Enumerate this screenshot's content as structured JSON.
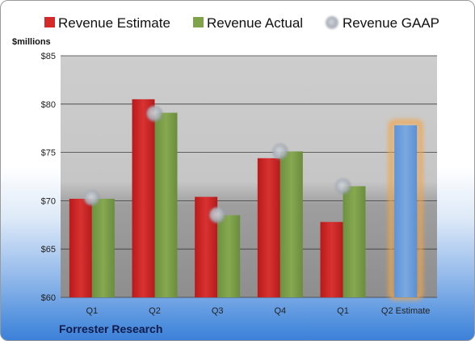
{
  "chart_data": {
    "type": "bar",
    "categories": [
      "Q1",
      "Q2",
      "Q3",
      "Q4",
      "Q1",
      "Q2 Estimate"
    ],
    "series": [
      {
        "name": "Revenue Estimate",
        "color": "#d42a2a",
        "values": [
          70.2,
          80.5,
          70.4,
          74.4,
          67.8,
          null
        ]
      },
      {
        "name": "Revenue Actual",
        "color": "#7fa24a",
        "values": [
          70.2,
          79.1,
          68.5,
          75.1,
          71.5,
          77.8
        ]
      },
      {
        "name": "Revenue GAAP",
        "color": "#a9afb8",
        "type": "scatter",
        "values": [
          70.3,
          79.0,
          68.5,
          75.1,
          71.5,
          null
        ]
      }
    ],
    "highlighted": {
      "category": "Q2 Estimate",
      "value": 77.8,
      "color": "#6fa0dc",
      "glow": "#f2a64a"
    },
    "ylabel": "$millions",
    "ylim": [
      60,
      85
    ],
    "yticks": [
      "$60",
      "$65",
      "$70",
      "$75",
      "$80",
      "$85"
    ],
    "legend": "top",
    "grid": true,
    "source": "Forrester Research"
  }
}
